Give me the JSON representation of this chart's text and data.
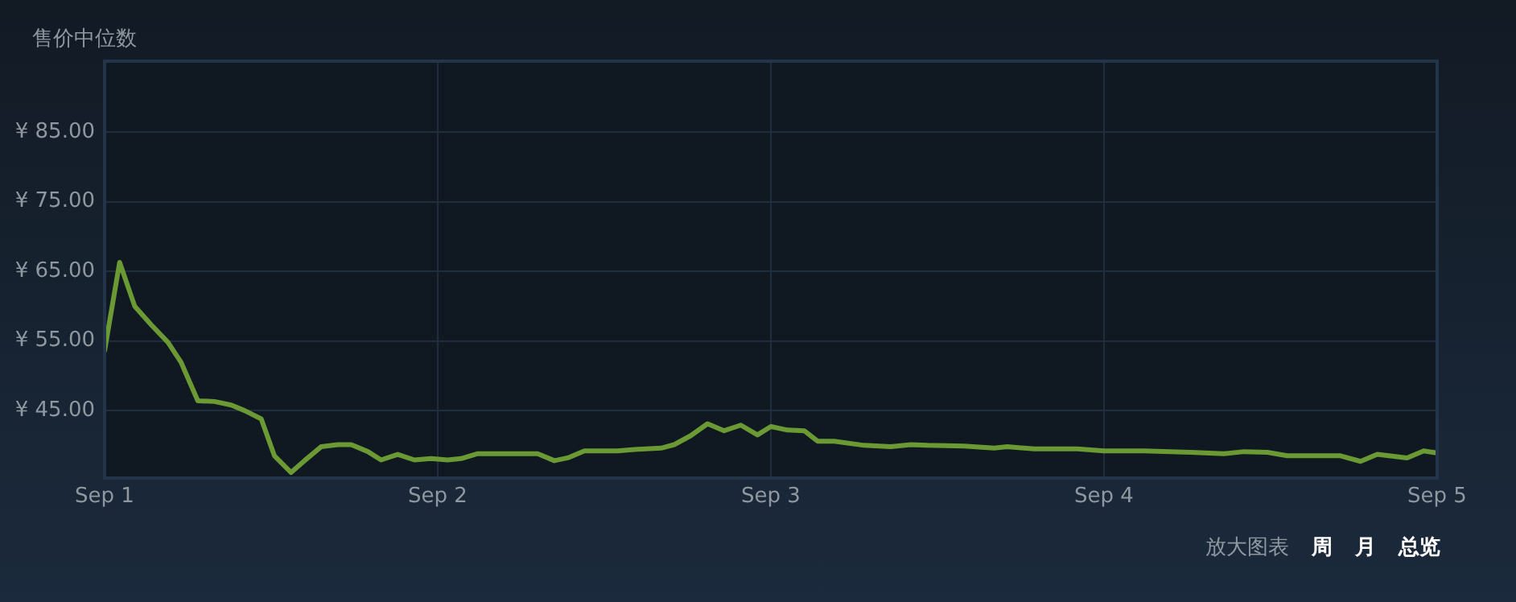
{
  "chart_data": {
    "type": "line",
    "title": "售价中位数",
    "x": [
      "--09-01T00:00",
      "--09-01T01:05",
      "--09-01T02:10",
      "--09-01T03:22",
      "--09-01T04:34",
      "--09-01T05:31",
      "--09-01T06:43",
      "--09-01T07:55",
      "--09-01T09:07",
      "--09-01T10:05",
      "--09-01T11:17",
      "--09-01T12:14",
      "--09-01T13:26",
      "--09-01T14:24",
      "--09-01T15:36",
      "--09-01T16:48",
      "--09-01T17:46",
      "--09-01T18:58",
      "--09-01T19:55",
      "--09-01T21:07",
      "--09-01T22:19",
      "--09-01T23:31",
      "--09-02T00:43",
      "--09-02T01:41",
      "--09-02T02:53",
      "--09-02T05:17",
      "--09-02T07:12",
      "--09-02T08:24",
      "--09-02T09:22",
      "--09-02T10:34",
      "--09-02T12:58",
      "--09-02T14:10",
      "--09-02T16:05",
      "--09-02T17:02",
      "--09-02T18:14",
      "--09-02T19:26",
      "--09-02T20:38",
      "--09-02T21:50",
      "--09-02T23:02",
      "--09-03T00:00",
      "--09-03T01:12",
      "--09-03T02:24",
      "--09-03T03:22",
      "--09-03T04:34",
      "--09-03T06:43",
      "--09-03T08:38",
      "--09-03T10:05",
      "--09-03T11:17",
      "--09-03T13:55",
      "--09-03T16:05",
      "--09-03T17:02",
      "--09-03T18:58",
      "--09-03T22:05",
      "--09-04T00:00",
      "--09-04T02:53",
      "--09-04T06:14",
      "--09-04T08:38",
      "--09-04T10:05",
      "--09-04T11:46",
      "--09-04T13:12",
      "--09-04T17:02",
      "--09-04T18:29",
      "--09-04T19:41",
      "--09-04T21:50",
      "--09-04T23:02",
      "--09-05T00:00"
    ],
    "series": [
      {
        "color": "#6b9a34",
        "values": [
          53.6,
          66.3,
          60.0,
          57.3,
          54.8,
          51.9,
          46.4,
          46.3,
          45.8,
          45.0,
          43.8,
          38.5,
          36.1,
          37.8,
          39.8,
          40.1,
          40.1,
          39.1,
          37.9,
          38.7,
          37.9,
          38.1,
          37.9,
          38.1,
          38.8,
          38.8,
          38.8,
          37.8,
          38.2,
          39.2,
          39.2,
          39.4,
          39.6,
          40.1,
          41.4,
          43.1,
          42.1,
          42.9,
          41.5,
          42.7,
          42.2,
          42.1,
          40.6,
          40.6,
          40.0,
          39.8,
          40.1,
          40.0,
          39.9,
          39.6,
          39.8,
          39.5,
          39.5,
          39.2,
          39.2,
          39.0,
          38.8,
          39.1,
          39.0,
          38.5,
          38.5,
          37.7,
          38.7,
          38.2,
          39.2,
          38.9
        ]
      }
    ],
    "xlim": [
      "--09-01",
      "--09-05"
    ],
    "xticks": [
      {
        "value": "--09-01",
        "label": "Sep 1"
      },
      {
        "value": "--09-02",
        "label": "Sep 2"
      },
      {
        "value": "--09-03",
        "label": "Sep 3"
      },
      {
        "value": "--09-04",
        "label": "Sep 4"
      },
      {
        "value": "--09-05",
        "label": "Sep 5"
      }
    ],
    "ylim": [
      35.3,
      95.2
    ],
    "yticks": [
      {
        "value": 45,
        "label": "¥ 45.00"
      },
      {
        "value": 55,
        "label": "¥ 55.00"
      },
      {
        "value": 65,
        "label": "¥ 65.00"
      },
      {
        "value": 75,
        "label": "¥ 75.00"
      },
      {
        "value": 85,
        "label": "¥ 85.00"
      }
    ],
    "grid": true,
    "legend": false,
    "marker": "none",
    "line_style": "solid",
    "annotations": [
      "放大图表",
      "周",
      "月",
      "总览"
    ]
  }
}
